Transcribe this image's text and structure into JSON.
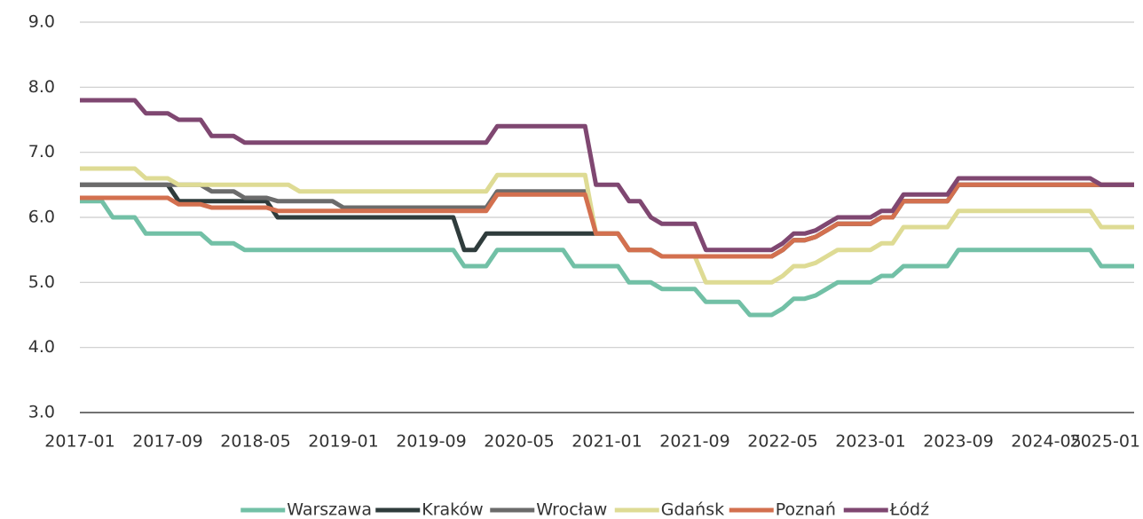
{
  "chart_data": {
    "type": "line",
    "categories": [
      "2017-01",
      "2017-02",
      "2017-03",
      "2017-04",
      "2017-05",
      "2017-06",
      "2017-07",
      "2017-08",
      "2017-09",
      "2017-10",
      "2017-11",
      "2017-12",
      "2018-01",
      "2018-02",
      "2018-03",
      "2018-04",
      "2018-05",
      "2018-06",
      "2018-07",
      "2018-08",
      "2018-09",
      "2018-10",
      "2018-11",
      "2018-12",
      "2019-01",
      "2019-02",
      "2019-03",
      "2019-04",
      "2019-05",
      "2019-06",
      "2019-07",
      "2019-08",
      "2019-09",
      "2019-10",
      "2019-11",
      "2019-12",
      "2020-01",
      "2020-02",
      "2020-03",
      "2020-04",
      "2020-05",
      "2020-06",
      "2020-07",
      "2020-08",
      "2020-09",
      "2020-10",
      "2020-11",
      "2020-12",
      "2021-01",
      "2021-02",
      "2021-03",
      "2021-04",
      "2021-05",
      "2021-06",
      "2021-07",
      "2021-08",
      "2021-09",
      "2021-10",
      "2021-11",
      "2021-12",
      "2022-01",
      "2022-02",
      "2022-03",
      "2022-04",
      "2022-05",
      "2022-06",
      "2022-07",
      "2022-08",
      "2022-09",
      "2022-10",
      "2022-11",
      "2022-12",
      "2023-01",
      "2023-02",
      "2023-03",
      "2023-04",
      "2023-05",
      "2023-06",
      "2023-07",
      "2023-08",
      "2023-09",
      "2023-10",
      "2023-11",
      "2023-12",
      "2024-01",
      "2024-02",
      "2024-03",
      "2024-04",
      "2024-05",
      "2024-06",
      "2024-07",
      "2024-08",
      "2024-09",
      "2024-10",
      "2024-11",
      "2024-12",
      "2025-01"
    ],
    "xticks": [
      "2017-01",
      "2017-09",
      "2018-05",
      "2019-01",
      "2019-09",
      "2020-05",
      "2021-01",
      "2021-09",
      "2022-05",
      "2023-01",
      "2023-09",
      "2024-05",
      "2025-01"
    ],
    "ylim": [
      3,
      9
    ],
    "yticks": [
      {
        "value": 3,
        "label": "3.0"
      },
      {
        "value": 4,
        "label": "4.0"
      },
      {
        "value": 5,
        "label": "5.0"
      },
      {
        "value": 6,
        "label": "6.0"
      },
      {
        "value": 7,
        "label": "7.0"
      },
      {
        "value": 8,
        "label": "8.0"
      },
      {
        "value": 9,
        "label": "9.0"
      }
    ],
    "grid": true,
    "legend": "bottom",
    "series": [
      {
        "name": "Warszawa",
        "color": "#72c0a6",
        "values": [
          6.25,
          6.25,
          6.25,
          6.0,
          6.0,
          6.0,
          5.75,
          5.75,
          5.75,
          5.75,
          5.75,
          5.75,
          5.6,
          5.6,
          5.6,
          5.5,
          5.5,
          5.5,
          5.5,
          5.5,
          5.5,
          5.5,
          5.5,
          5.5,
          5.5,
          5.5,
          5.5,
          5.5,
          5.5,
          5.5,
          5.5,
          5.5,
          5.5,
          5.5,
          5.5,
          5.25,
          5.25,
          5.25,
          5.5,
          5.5,
          5.5,
          5.5,
          5.5,
          5.5,
          5.5,
          5.25,
          5.25,
          5.25,
          5.25,
          5.25,
          5.0,
          5.0,
          5.0,
          4.9,
          4.9,
          4.9,
          4.9,
          4.7,
          4.7,
          4.7,
          4.7,
          4.5,
          4.5,
          4.5,
          4.6,
          4.75,
          4.75,
          4.8,
          4.9,
          5.0,
          5.0,
          5.0,
          5.0,
          5.1,
          5.1,
          5.25,
          5.25,
          5.25,
          5.25,
          5.25,
          5.5,
          5.5,
          5.5,
          5.5,
          5.5,
          5.5,
          5.5,
          5.5,
          5.5,
          5.5,
          5.5,
          5.5,
          5.5,
          5.25,
          5.25,
          5.25,
          5.25
        ]
      },
      {
        "name": "Kraków",
        "color": "#2f3c3c",
        "values": [
          6.5,
          6.5,
          6.5,
          6.5,
          6.5,
          6.5,
          6.5,
          6.5,
          6.5,
          6.25,
          6.25,
          6.25,
          6.25,
          6.25,
          6.25,
          6.25,
          6.25,
          6.25,
          6.0,
          6.0,
          6.0,
          6.0,
          6.0,
          6.0,
          6.0,
          6.0,
          6.0,
          6.0,
          6.0,
          6.0,
          6.0,
          6.0,
          6.0,
          6.0,
          6.0,
          5.5,
          5.5,
          5.75,
          5.75,
          5.75,
          5.75,
          5.75,
          5.75,
          5.75,
          5.75,
          5.75,
          5.75,
          5.75,
          5.75,
          5.75,
          5.5,
          5.5,
          5.5,
          5.4,
          5.4,
          5.4,
          5.4,
          5.4,
          5.4,
          5.4,
          5.4,
          5.4,
          5.4,
          5.4,
          5.5,
          5.65,
          5.65,
          5.7,
          5.8,
          5.9,
          5.9,
          5.9,
          5.9,
          6.0,
          6.0,
          6.25,
          6.25,
          6.25,
          6.25,
          6.25,
          6.5,
          6.5,
          6.5,
          6.5,
          6.5,
          6.5,
          6.5,
          6.5,
          6.5,
          6.5,
          6.5,
          6.5,
          6.5,
          6.5,
          6.5,
          6.5,
          6.5
        ]
      },
      {
        "name": "Wrocław",
        "color": "#6b6b6b",
        "values": [
          6.5,
          6.5,
          6.5,
          6.5,
          6.5,
          6.5,
          6.5,
          6.5,
          6.5,
          6.5,
          6.5,
          6.5,
          6.4,
          6.4,
          6.4,
          6.3,
          6.3,
          6.3,
          6.25,
          6.25,
          6.25,
          6.25,
          6.25,
          6.25,
          6.15,
          6.15,
          6.15,
          6.15,
          6.15,
          6.15,
          6.15,
          6.15,
          6.15,
          6.15,
          6.15,
          6.15,
          6.15,
          6.15,
          6.4,
          6.4,
          6.4,
          6.4,
          6.4,
          6.4,
          6.4,
          6.4,
          6.4,
          5.75,
          5.75,
          5.75,
          5.5,
          5.5,
          5.5,
          5.4,
          5.4,
          5.4,
          5.4,
          5.4,
          5.4,
          5.4,
          5.4,
          5.4,
          5.4,
          5.4,
          5.5,
          5.65,
          5.65,
          5.7,
          5.8,
          5.9,
          5.9,
          5.9,
          5.9,
          6.0,
          6.0,
          6.25,
          6.25,
          6.25,
          6.25,
          6.25,
          6.5,
          6.5,
          6.5,
          6.5,
          6.5,
          6.5,
          6.5,
          6.5,
          6.5,
          6.5,
          6.5,
          6.5,
          6.5,
          6.5,
          6.5,
          6.5,
          6.5
        ]
      },
      {
        "name": "Gdańsk",
        "color": "#dedb94",
        "values": [
          6.75,
          6.75,
          6.75,
          6.75,
          6.75,
          6.75,
          6.6,
          6.6,
          6.6,
          6.5,
          6.5,
          6.5,
          6.5,
          6.5,
          6.5,
          6.5,
          6.5,
          6.5,
          6.5,
          6.5,
          6.4,
          6.4,
          6.4,
          6.4,
          6.4,
          6.4,
          6.4,
          6.4,
          6.4,
          6.4,
          6.4,
          6.4,
          6.4,
          6.4,
          6.4,
          6.4,
          6.4,
          6.4,
          6.65,
          6.65,
          6.65,
          6.65,
          6.65,
          6.65,
          6.65,
          6.65,
          6.65,
          5.75,
          5.75,
          5.75,
          5.5,
          5.5,
          5.5,
          5.4,
          5.4,
          5.4,
          5.4,
          5.0,
          5.0,
          5.0,
          5.0,
          5.0,
          5.0,
          5.0,
          5.1,
          5.25,
          5.25,
          5.3,
          5.4,
          5.5,
          5.5,
          5.5,
          5.5,
          5.6,
          5.6,
          5.85,
          5.85,
          5.85,
          5.85,
          5.85,
          6.1,
          6.1,
          6.1,
          6.1,
          6.1,
          6.1,
          6.1,
          6.1,
          6.1,
          6.1,
          6.1,
          6.1,
          6.1,
          5.85,
          5.85,
          5.85,
          5.85
        ]
      },
      {
        "name": "Poznań",
        "color": "#d3704f",
        "values": [
          6.3,
          6.3,
          6.3,
          6.3,
          6.3,
          6.3,
          6.3,
          6.3,
          6.3,
          6.2,
          6.2,
          6.2,
          6.15,
          6.15,
          6.15,
          6.15,
          6.15,
          6.15,
          6.1,
          6.1,
          6.1,
          6.1,
          6.1,
          6.1,
          6.1,
          6.1,
          6.1,
          6.1,
          6.1,
          6.1,
          6.1,
          6.1,
          6.1,
          6.1,
          6.1,
          6.1,
          6.1,
          6.1,
          6.35,
          6.35,
          6.35,
          6.35,
          6.35,
          6.35,
          6.35,
          6.35,
          6.35,
          5.75,
          5.75,
          5.75,
          5.5,
          5.5,
          5.5,
          5.4,
          5.4,
          5.4,
          5.4,
          5.4,
          5.4,
          5.4,
          5.4,
          5.4,
          5.4,
          5.4,
          5.5,
          5.65,
          5.65,
          5.7,
          5.8,
          5.9,
          5.9,
          5.9,
          5.9,
          6.0,
          6.0,
          6.25,
          6.25,
          6.25,
          6.25,
          6.25,
          6.5,
          6.5,
          6.5,
          6.5,
          6.5,
          6.5,
          6.5,
          6.5,
          6.5,
          6.5,
          6.5,
          6.5,
          6.5,
          6.5,
          6.5,
          6.5,
          6.5
        ]
      },
      {
        "name": "Łódź",
        "color": "#7f4771",
        "values": [
          7.8,
          7.8,
          7.8,
          7.8,
          7.8,
          7.8,
          7.6,
          7.6,
          7.6,
          7.5,
          7.5,
          7.5,
          7.25,
          7.25,
          7.25,
          7.15,
          7.15,
          7.15,
          7.15,
          7.15,
          7.15,
          7.15,
          7.15,
          7.15,
          7.15,
          7.15,
          7.15,
          7.15,
          7.15,
          7.15,
          7.15,
          7.15,
          7.15,
          7.15,
          7.15,
          7.15,
          7.15,
          7.15,
          7.4,
          7.4,
          7.4,
          7.4,
          7.4,
          7.4,
          7.4,
          7.4,
          7.4,
          6.5,
          6.5,
          6.5,
          6.25,
          6.25,
          6.0,
          5.9,
          5.9,
          5.9,
          5.9,
          5.5,
          5.5,
          5.5,
          5.5,
          5.5,
          5.5,
          5.5,
          5.6,
          5.75,
          5.75,
          5.8,
          5.9,
          6.0,
          6.0,
          6.0,
          6.0,
          6.1,
          6.1,
          6.35,
          6.35,
          6.35,
          6.35,
          6.35,
          6.6,
          6.6,
          6.6,
          6.6,
          6.6,
          6.6,
          6.6,
          6.6,
          6.6,
          6.6,
          6.6,
          6.6,
          6.6,
          6.5,
          6.5,
          6.5,
          6.5
        ]
      }
    ]
  }
}
